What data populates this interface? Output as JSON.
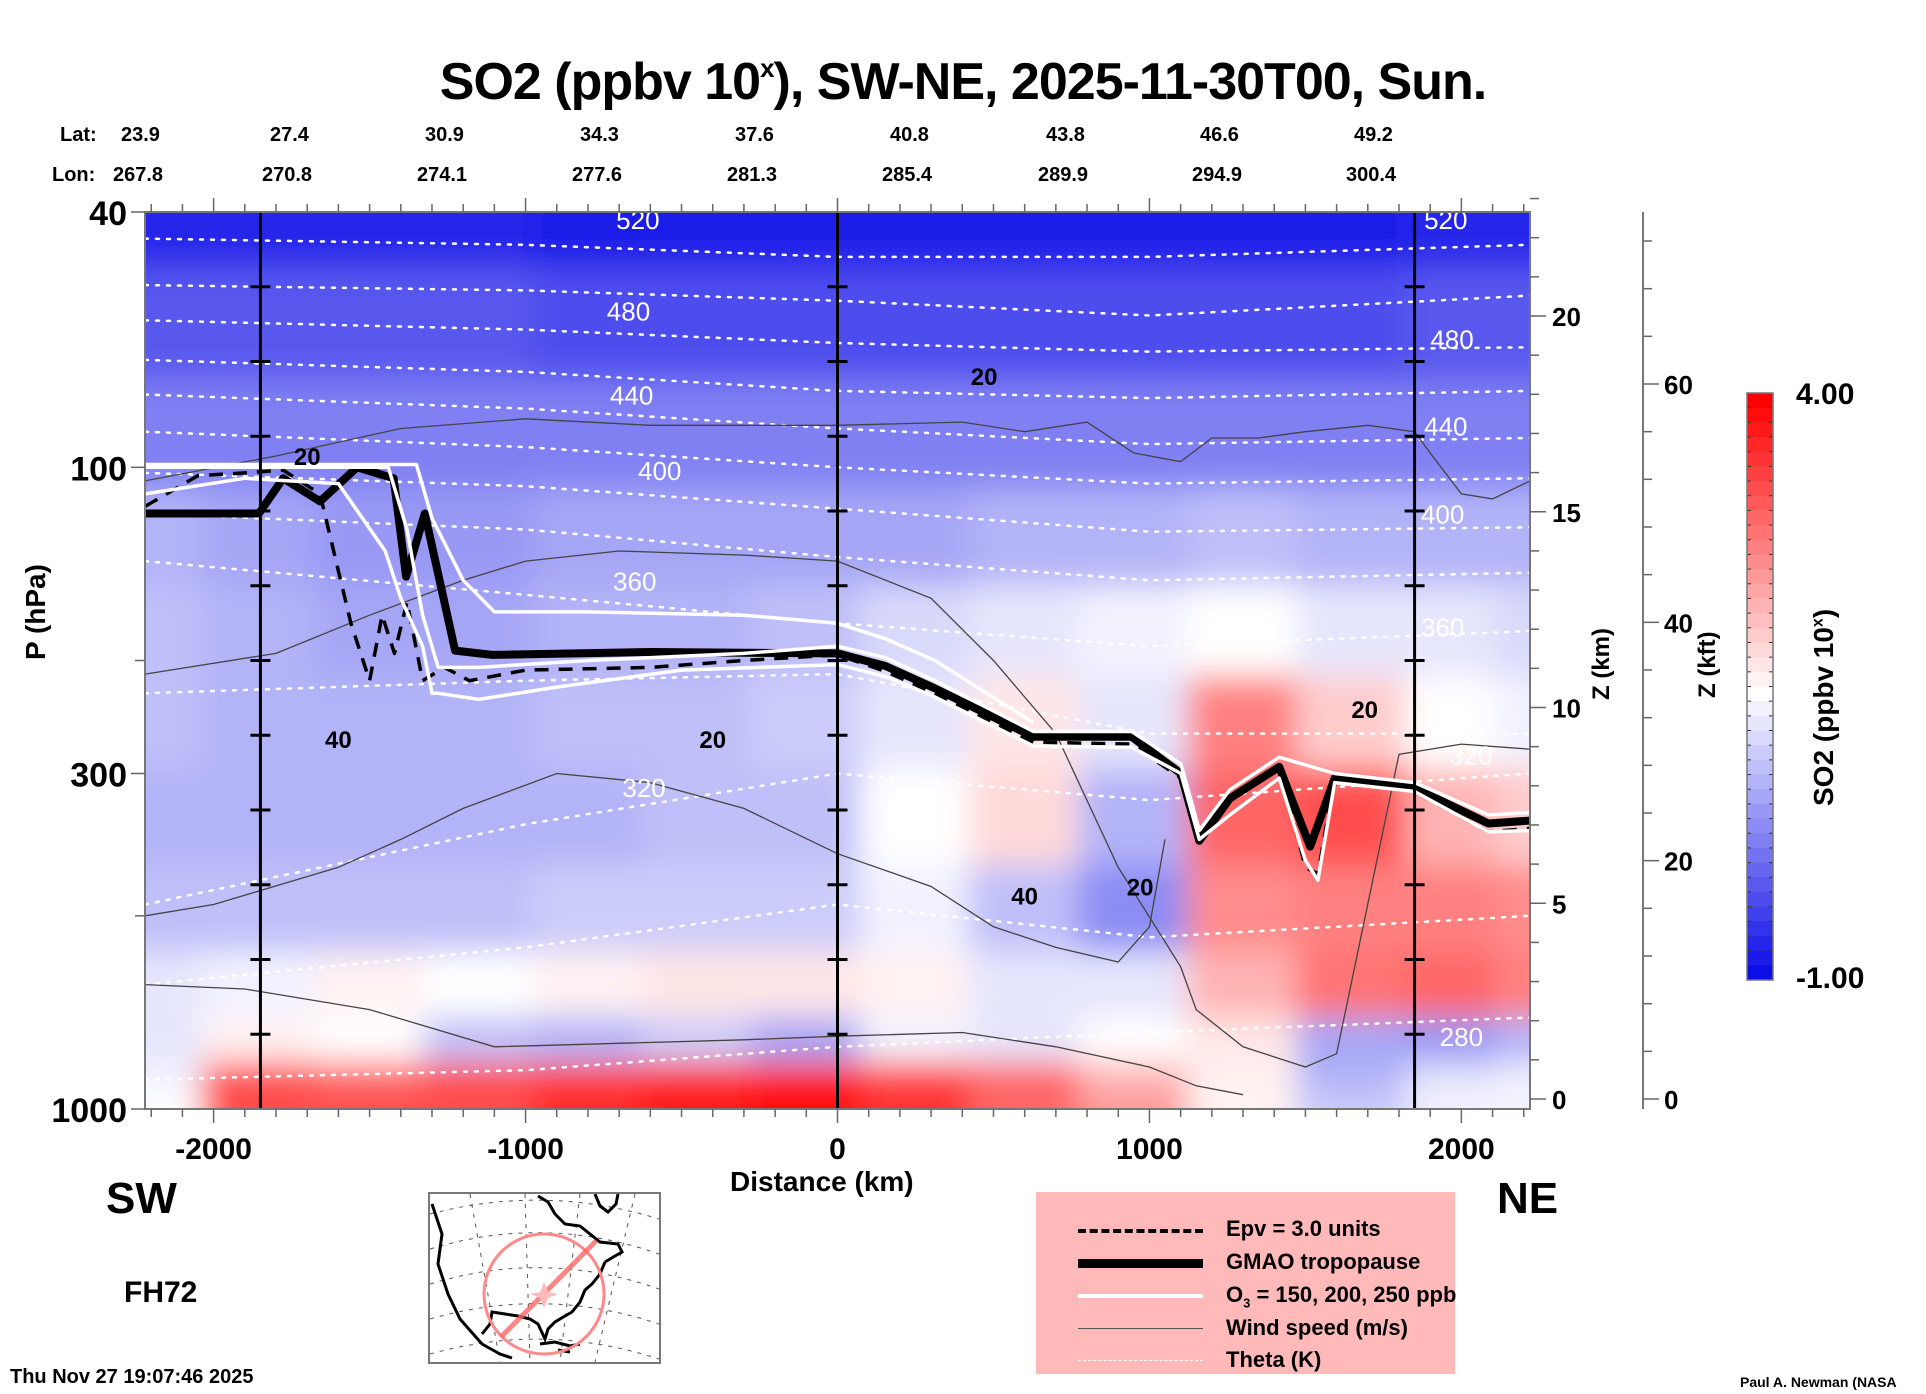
{
  "title": {
    "main": "SO2 (ppbv 10",
    "sup": "x",
    "rest": "), SW-NE, 2025-11-30T00, Sun."
  },
  "lat": {
    "label": "Lat:",
    "values": [
      "23.9",
      "27.4",
      "30.9",
      "34.3",
      "37.6",
      "40.8",
      "43.8",
      "46.6",
      "49.2"
    ]
  },
  "lon": {
    "label": "Lon:",
    "values": [
      "267.8",
      "270.8",
      "274.1",
      "277.6",
      "281.3",
      "285.4",
      "289.9",
      "294.9",
      "300.4"
    ]
  },
  "labels": {
    "sw": "SW",
    "ne": "NE",
    "forecast_hour": "FH72",
    "timestamp": "Thu Nov 27 19:07:46 2025",
    "credit": "Paul A. Newman (NASA"
  },
  "legend": {
    "items": [
      {
        "style": "dashed",
        "label": "Epv = 3.0 units"
      },
      {
        "style": "thick",
        "label": "GMAO tropopause"
      },
      {
        "style": "white",
        "label_pre": "O",
        "label_sub": "3",
        "label_post": " = 150, 200, 250 ppb"
      },
      {
        "style": "thin",
        "label": "Wind speed (m/s)"
      },
      {
        "style": "dotted",
        "label": "Theta (K)"
      }
    ],
    "background": "#ffb9b9"
  },
  "colorbar": {
    "max_label": "4.00",
    "min_label": "-1.00",
    "title_pre": "SO2 (ppbv 10",
    "title_sup": "x",
    "title_post": ")",
    "range": [
      -1.0,
      4.0
    ],
    "colors": {
      "low": "#0000e6",
      "mid": "#ffffff",
      "high": "#ff0000"
    }
  },
  "chart_data": {
    "type": "heatmap",
    "title": "SO2 (ppbv 10^x), SW-NE, 2025-11-30T00, Sun.",
    "xlabel": "Distance (km)",
    "ylabel": "P (hPa)",
    "y2label": "Z (km)",
    "y3label": "Z (kft)",
    "xlim": [
      -2220,
      2220
    ],
    "ylim": [
      1000,
      40
    ],
    "yscale": "log",
    "x_ticks": [
      -2000,
      -1000,
      0,
      1000,
      2000
    ],
    "x_tick_labels": [
      "-2000",
      "-1000",
      "0",
      "1000",
      "2000"
    ],
    "y_ticks": [
      40,
      100,
      300,
      1000
    ],
    "y_tick_labels": [
      "40",
      "100",
      "300",
      "1000"
    ],
    "z_km_ticks": [
      0,
      5,
      10,
      15,
      20
    ],
    "z_km_tick_labels": [
      "0",
      "5",
      "10",
      "15",
      "20"
    ],
    "z_kft_ticks": [
      0,
      20,
      40,
      60
    ],
    "z_kft_tick_labels": [
      "0",
      "20",
      "40",
      "60"
    ],
    "section_markers_km": [
      -1850,
      0,
      1850
    ],
    "colorbar_range": [
      -1.0,
      4.0
    ],
    "so2_grid": {
      "x": [
        -2220,
        -1850,
        -1500,
        -1150,
        -800,
        -450,
        -100,
        250,
        600,
        950,
        1300,
        1650,
        2000,
        2220
      ],
      "p": [
        40,
        60,
        90,
        130,
        180,
        250,
        350,
        500,
        650,
        800,
        900,
        1000
      ],
      "values": [
        [
          -0.6,
          -0.6,
          -0.6,
          -0.6,
          -0.7,
          -0.8,
          -0.8,
          -0.8,
          -0.8,
          -0.8,
          -0.7,
          -0.7,
          -0.6,
          -0.6
        ],
        [
          -0.1,
          -0.1,
          -0.1,
          -0.1,
          -0.2,
          -0.2,
          -0.3,
          -0.3,
          -0.3,
          -0.3,
          -0.2,
          -0.2,
          -0.1,
          -0.1
        ],
        [
          0.3,
          0.3,
          0.3,
          0.3,
          0.2,
          0.2,
          0.2,
          0.2,
          0.2,
          0.2,
          0.3,
          0.3,
          0.3,
          0.3
        ],
        [
          0.7,
          0.6,
          0.5,
          0.5,
          0.6,
          0.6,
          0.6,
          0.6,
          0.7,
          0.8,
          0.9,
          0.8,
          0.7,
          0.7
        ],
        [
          0.9,
          0.8,
          0.6,
          0.6,
          0.8,
          0.8,
          0.9,
          1.1,
          1.3,
          1.4,
          1.5,
          1.3,
          1.2,
          1.1
        ],
        [
          0.9,
          0.8,
          0.7,
          0.8,
          0.9,
          0.9,
          1.0,
          1.3,
          1.7,
          1.2,
          2.8,
          2.0,
          1.5,
          1.4
        ],
        [
          0.8,
          0.7,
          0.7,
          0.8,
          0.8,
          0.9,
          0.9,
          1.5,
          1.9,
          0.7,
          3.0,
          3.2,
          2.2,
          2.0
        ],
        [
          0.9,
          0.9,
          0.9,
          0.9,
          1.0,
          1.0,
          1.0,
          1.4,
          0.9,
          0.4,
          2.6,
          2.8,
          2.8,
          2.6
        ],
        [
          1.2,
          1.4,
          1.6,
          1.5,
          1.6,
          1.8,
          1.7,
          1.6,
          1.2,
          1.3,
          2.2,
          2.9,
          3.0,
          2.8
        ],
        [
          1.3,
          1.6,
          1.5,
          0.9,
          0.7,
          1.0,
          0.6,
          1.4,
          1.2,
          1.5,
          1.8,
          0.6,
          0.5,
          0.7
        ],
        [
          1.4,
          3.2,
          3.0,
          3.2,
          3.4,
          3.6,
          3.8,
          3.4,
          3.0,
          2.2,
          1.6,
          0.8,
          1.2,
          1.4
        ],
        [
          1.5,
          3.3,
          3.2,
          3.3,
          3.6,
          3.8,
          3.9,
          3.5,
          3.0,
          2.5,
          1.6,
          1.0,
          1.4,
          1.4
        ]
      ]
    },
    "series": [
      {
        "name": "GMAO tropopause",
        "style": "thick",
        "x": [
          -2219,
          -1994,
          -1855,
          -1777,
          -1659,
          -1540,
          -1423,
          -1383,
          -1323,
          -1226,
          -1107,
          -600,
          0,
          154,
          312,
          628,
          943,
          1101,
          1160,
          1258,
          1416,
          1515,
          1594,
          1850,
          2087,
          2229
        ],
        "p": [
          118,
          118,
          118,
          104,
          113,
          100,
          104,
          148,
          118,
          193,
          196,
          194,
          195,
          204,
          221,
          263,
          263,
          300,
          382,
          328,
          293,
          390,
          305,
          316,
          359,
          355
        ]
      },
      {
        "name": "Epv = 3.0 units",
        "style": "dashed",
        "x": [
          -2219,
          -2050,
          -1900,
          -1777,
          -1659,
          -1560,
          -1500,
          -1460,
          -1420,
          -1380,
          -1330,
          -1260,
          -1180,
          -1000,
          -600,
          -300,
          0,
          154,
          312,
          628,
          943,
          1101,
          1160,
          1258,
          1416,
          1500,
          1540,
          1594,
          1850,
          2087,
          2229
        ],
        "p": [
          115,
          103,
          102,
          101,
          110,
          175,
          215,
          170,
          195,
          162,
          215,
          205,
          215,
          207,
          205,
          200,
          196,
          208,
          225,
          268,
          270,
          305,
          382,
          330,
          292,
          420,
          430,
          305,
          320,
          370,
          365
        ]
      },
      {
        "name": "O3 = 150 ppb",
        "style": "white",
        "x": [
          -2219,
          -1900,
          -1600,
          -1450,
          -1400,
          -1330,
          -1300,
          -1280,
          -1150,
          -900,
          -500,
          0,
          154,
          312,
          628,
          943,
          1101,
          1160,
          1258,
          1416,
          1500,
          1540,
          1594,
          1850,
          2087,
          2229
        ],
        "p": [
          110,
          104,
          106,
          135,
          160,
          190,
          225,
          225,
          230,
          220,
          207,
          203,
          212,
          228,
          272,
          273,
          300,
          380,
          348,
          305,
          410,
          440,
          310,
          320,
          370,
          368
        ]
      },
      {
        "name": "O3 = 200 ppb",
        "style": "white",
        "x": [
          -2219,
          -1800,
          -1440,
          -1380,
          -1330,
          -1280,
          -1150,
          -800,
          -300,
          0,
          154,
          312,
          628,
          943,
          1101,
          1160,
          1258,
          1416,
          1594,
          1850,
          2087,
          2229
        ],
        "p": [
          100,
          100,
          100,
          125,
          170,
          205,
          205,
          200,
          195,
          190,
          198,
          215,
          258,
          258,
          290,
          368,
          318,
          283,
          300,
          310,
          348,
          345
        ]
      },
      {
        "name": "O3 = 250 ppb",
        "style": "white",
        "x": [
          -2219,
          -1800,
          -1350,
          -1300,
          -1200,
          -1100,
          -800,
          -300,
          0,
          154,
          312,
          628
        ],
        "p": [
          99,
          99,
          99,
          120,
          150,
          168,
          168,
          170,
          175,
          185,
          200,
          250
        ]
      }
    ],
    "theta_contours": [
      {
        "level": 520,
        "x": [
          -2220,
          -1000,
          0,
          1000,
          2220
        ],
        "p": [
          44,
          45,
          47,
          47,
          45
        ]
      },
      {
        "level": 500,
        "x": [
          -2220,
          -1000,
          0,
          1000,
          2220
        ],
        "p": [
          52,
          53,
          55,
          58,
          54
        ]
      },
      {
        "level": 480,
        "x": [
          -2220,
          -1000,
          0,
          1000,
          2220
        ],
        "p": [
          59,
          61,
          64,
          66,
          65
        ]
      },
      {
        "level": 460,
        "x": [
          -2220,
          -1000,
          0,
          1000,
          2220
        ],
        "p": [
          68,
          71,
          76,
          78,
          76
        ]
      },
      {
        "level": 440,
        "x": [
          -2220,
          -1000,
          0,
          1000,
          2220
        ],
        "p": [
          77,
          81,
          87,
          92,
          90
        ]
      },
      {
        "level": 420,
        "x": [
          -2220,
          -1000,
          0,
          1000,
          2220
        ],
        "p": [
          88,
          93,
          100,
          106,
          104
        ]
      },
      {
        "level": 400,
        "x": [
          -2220,
          -1000,
          0,
          1000,
          2220
        ],
        "p": [
          102,
          107,
          116,
          126,
          124
        ]
      },
      {
        "level": 380,
        "x": [
          -2220,
          -1000,
          0,
          1000,
          2220
        ],
        "p": [
          118,
          125,
          138,
          150,
          146
        ]
      },
      {
        "level": 360,
        "x": [
          -2220,
          -1000,
          0,
          1000,
          2220
        ],
        "p": [
          140,
          158,
          175,
          190,
          180
        ]
      },
      {
        "level": 340,
        "x": [
          -2220,
          -1000,
          0,
          1000,
          2220
        ],
        "p": [
          225,
          215,
          210,
          260,
          260
        ]
      },
      {
        "level": 320,
        "x": [
          -2220,
          -1000,
          0,
          1000,
          2220
        ],
        "p": [
          480,
          360,
          300,
          330,
          300
        ]
      },
      {
        "level": 300,
        "x": [
          -2220,
          -1000,
          0,
          1000,
          2220
        ],
        "p": [
          640,
          560,
          480,
          540,
          500
        ]
      },
      {
        "level": 280,
        "x": [
          -2220,
          -1000,
          0,
          1000,
          2220
        ],
        "p": [
          900,
          870,
          800,
          760,
          720
        ]
      }
    ],
    "theta_labels": [
      {
        "text": "520",
        "x": -640,
        "p": 41
      },
      {
        "text": "480",
        "x": -670,
        "p": 57
      },
      {
        "text": "440",
        "x": -660,
        "p": 77
      },
      {
        "text": "400",
        "x": -570,
        "p": 101
      },
      {
        "text": "360",
        "x": -650,
        "p": 150
      },
      {
        "text": "320",
        "x": -620,
        "p": 315
      },
      {
        "text": "520",
        "x": 1950,
        "p": 41
      },
      {
        "text": "480",
        "x": 1970,
        "p": 63
      },
      {
        "text": "440",
        "x": 1950,
        "p": 86
      },
      {
        "text": "400",
        "x": 1940,
        "p": 118
      },
      {
        "text": "360",
        "x": 1940,
        "p": 177
      },
      {
        "text": "320",
        "x": 2030,
        "p": 280
      },
      {
        "text": "280",
        "x": 2000,
        "p": 770
      }
    ],
    "wind_contours": [
      {
        "level": 20,
        "x": [
          -2220,
          -1800,
          -1400,
          -1000,
          -600,
          -200,
          0,
          400,
          600,
          800,
          950,
          1100,
          1200,
          1350,
          1500,
          1700,
          1850,
          1900,
          2000,
          2100,
          2220
        ],
        "p": [
          105,
          96,
          87,
          84,
          86,
          86,
          86,
          85,
          88,
          85,
          95,
          98,
          90,
          90,
          88,
          86,
          88,
          95,
          110,
          112,
          105
        ]
      },
      {
        "level": 20,
        "x": [
          -2220,
          -1800,
          -1500,
          -1200,
          -1000,
          -700,
          -300,
          0,
          300,
          500,
          700,
          900,
          1100,
          1150,
          1300,
          1500,
          1600,
          1800,
          2000,
          2220
        ],
        "p": [
          210,
          195,
          170,
          150,
          140,
          135,
          137,
          140,
          160,
          200,
          260,
          420,
          600,
          700,
          800,
          860,
          820,
          280,
          270,
          275
        ]
      },
      {
        "level": 40,
        "x": [
          -2220,
          -2000,
          -1600,
          -1400,
          -1200,
          -900,
          -600,
          -300,
          0,
          300,
          500,
          700,
          900,
          1000,
          1050
        ],
        "p": [
          500,
          480,
          420,
          380,
          340,
          300,
          310,
          340,
          400,
          450,
          520,
          560,
          590,
          520,
          380
        ]
      },
      {
        "level": 20,
        "x": [
          -2220,
          -1900,
          -1500,
          -1100,
          -700,
          -300,
          0,
          400,
          700,
          1000,
          1150,
          1300
        ],
        "p": [
          640,
          650,
          700,
          800,
          790,
          780,
          770,
          760,
          800,
          860,
          920,
          950
        ]
      }
    ],
    "wind_labels": [
      {
        "text": "20",
        "x": -1700,
        "p": 96
      },
      {
        "text": "20",
        "x": 470,
        "p": 72
      },
      {
        "text": "40",
        "x": -1600,
        "p": 265
      },
      {
        "text": "20",
        "x": -400,
        "p": 265
      },
      {
        "text": "40",
        "x": 600,
        "p": 465
      },
      {
        "text": "20",
        "x": 970,
        "p": 450
      },
      {
        "text": "20",
        "x": 1690,
        "p": 238
      }
    ]
  }
}
